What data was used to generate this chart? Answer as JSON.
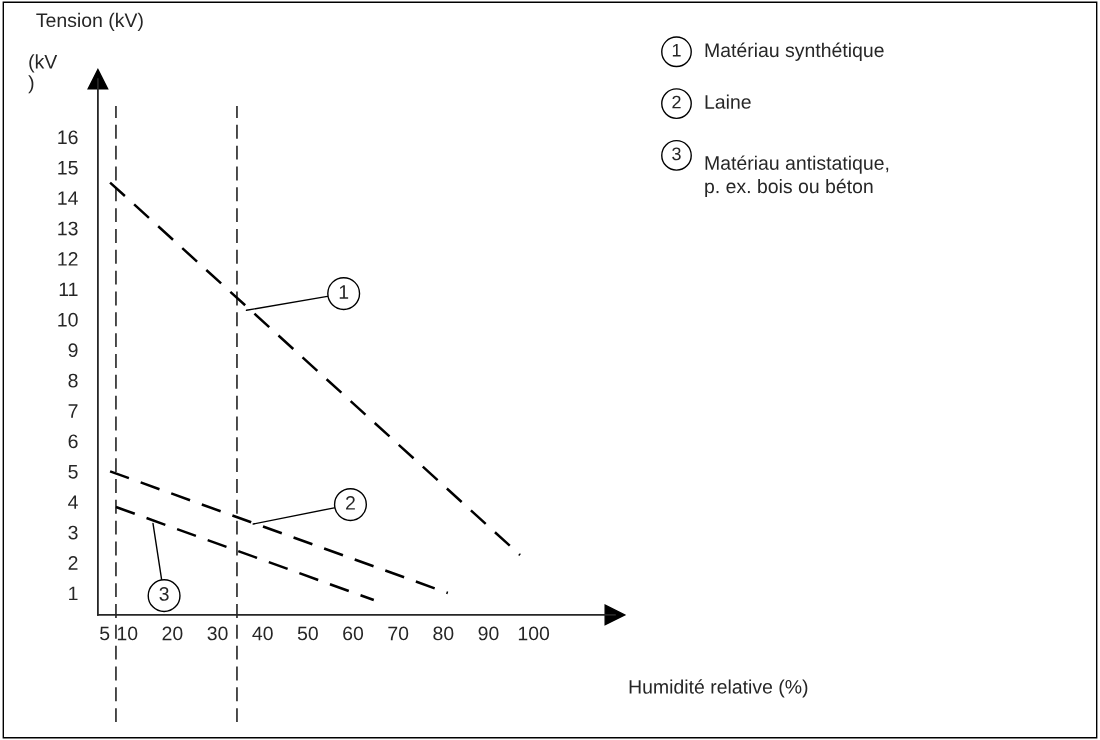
{
  "chart_data": {
    "type": "line",
    "ylabel": "Tension (kV)",
    "xlabel": "Humidité relative (%)",
    "series": [
      {
        "name": "Matériau synthétique",
        "color": "#000000",
        "x": [
          6.2,
          97
        ],
        "values": [
          14.5,
          2.25
        ]
      },
      {
        "name": "Laine",
        "color": "#000000",
        "x": [
          6.2,
          81
        ],
        "values": [
          5.0,
          1.0
        ]
      },
      {
        "name": "Matériau antistatique,\np. ex. bois ou béton",
        "color": "#000000",
        "x": [
          7.5,
          64.6
        ],
        "values": [
          3.83,
          0.77
        ]
      }
    ],
    "line_style": "dashed",
    "marker": "none",
    "xlim": [
      3.5,
      118
    ],
    "xticks": [
      5,
      10,
      20,
      30,
      40,
      50,
      60,
      70,
      80,
      90,
      100
    ],
    "ylim": [
      0.28,
      17.9
    ],
    "yticks": [
      1,
      2,
      3,
      4,
      5,
      6,
      7,
      8,
      9,
      10,
      11,
      12,
      13,
      14,
      15,
      16
    ],
    "ref_lines": [
      {
        "axis": "x",
        "value": 7.5,
        "color": "#000000",
        "line_style": "dashed"
      },
      {
        "axis": "x",
        "value": 34.3,
        "color": "#000000",
        "line_style": "dashed"
      }
    ],
    "annotations": [
      {
        "text": "1",
        "x": 36.4,
        "y": 10.3
      },
      {
        "text": "2",
        "x": 37.9,
        "y": 3.27
      },
      {
        "text": "3",
        "x": 15.7,
        "y": 3.29
      },
      "(kV\n)"
    ],
    "legend": "top right",
    "grid": false
  }
}
